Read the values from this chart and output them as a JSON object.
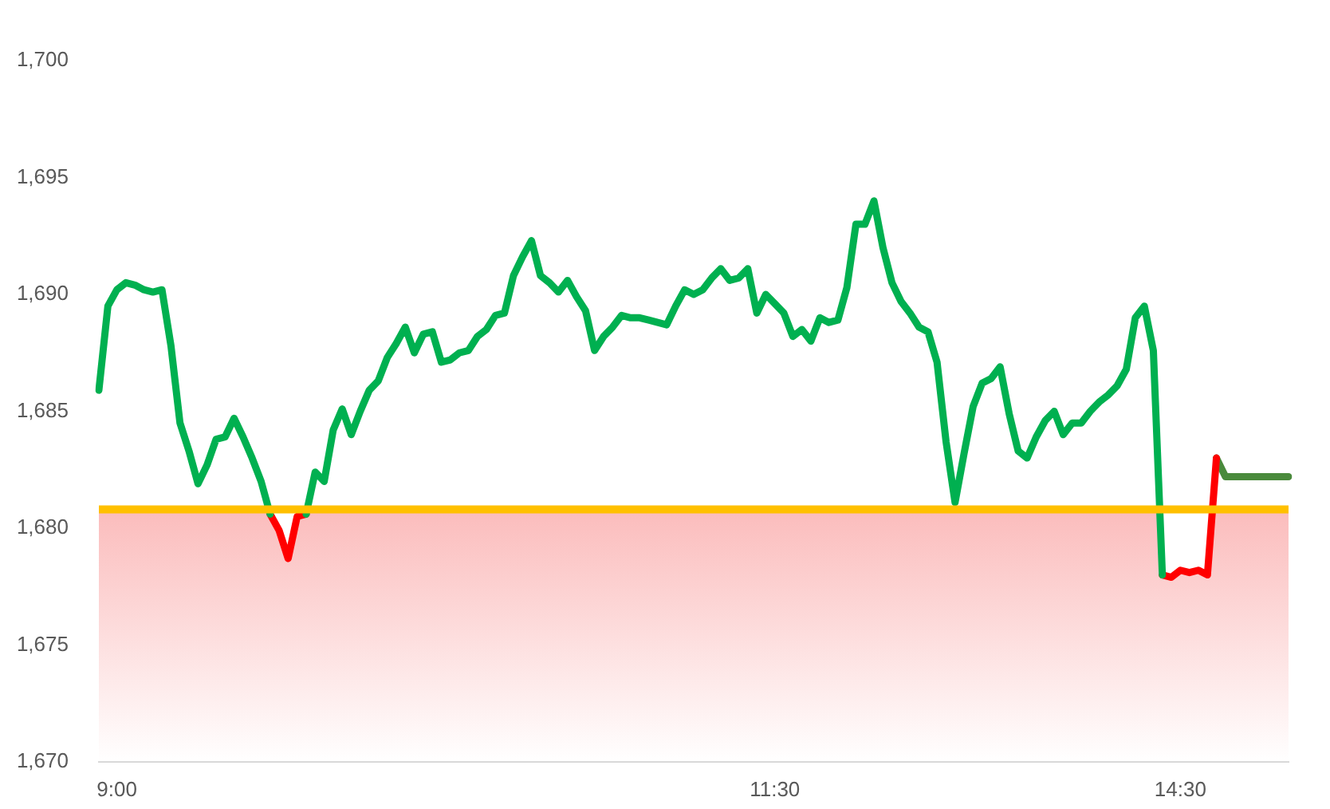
{
  "chart_data": {
    "type": "line",
    "categories": [
      null,
      null,
      "9:00",
      null,
      null,
      null,
      null,
      null,
      null,
      null,
      null,
      null,
      null,
      null,
      null,
      null,
      null,
      null,
      null,
      null,
      null,
      null,
      null,
      null,
      null,
      null,
      null,
      null,
      null,
      null,
      null,
      null,
      null,
      null,
      null,
      null,
      null,
      null,
      null,
      null,
      null,
      null,
      null,
      null,
      null,
      null,
      null,
      null,
      null,
      null,
      null,
      null,
      null,
      null,
      null,
      null,
      null,
      null,
      null,
      null,
      null,
      null,
      null,
      null,
      null,
      null,
      null,
      null,
      null,
      null,
      null,
      null,
      null,
      null,
      null,
      "11:30",
      null,
      null,
      null,
      null,
      null,
      null,
      null,
      null,
      null,
      null,
      null,
      null,
      null,
      null,
      null,
      null,
      null,
      null,
      null,
      null,
      null,
      null,
      null,
      null,
      null,
      null,
      null,
      null,
      null,
      null,
      null,
      null,
      null,
      null,
      null,
      null,
      null,
      null,
      null,
      null,
      null,
      null,
      null,
      null,
      "14:30",
      null,
      null,
      null,
      null,
      null,
      null,
      null,
      null,
      null,
      null,
      null,
      null
    ],
    "series": [
      {
        "color": "#00b050",
        "values": [
          1685.9,
          1689.5,
          1690.2,
          1690.5,
          1690.4,
          1690.2,
          1690.1,
          1690.2,
          1687.8,
          1684.5,
          1683.3,
          1681.9,
          1682.7,
          1683.8,
          1683.9,
          1684.7,
          1683.9,
          1683.0,
          1682.0,
          1680.6,
          null,
          null,
          null,
          1680.6,
          1682.4,
          1682.0,
          1684.2,
          1685.1,
          1684.0,
          1685.0,
          1685.9,
          1686.3,
          1687.3,
          1687.9,
          1688.6,
          1687.5,
          1688.3,
          1688.4,
          1687.1,
          1687.2,
          1687.5,
          1687.6,
          1688.2,
          1688.5,
          1689.1,
          1689.2,
          1690.8,
          1691.6,
          1692.3,
          1690.8,
          1690.5,
          1690.1,
          1690.6,
          1689.9,
          1689.3,
          1687.6,
          1688.2,
          1688.6,
          1689.1,
          1689.0,
          1689.0,
          1688.9,
          1688.8,
          1688.7,
          1689.5,
          1690.2,
          1690.0,
          1690.2,
          1690.7,
          1691.1,
          1690.6,
          1690.7,
          1691.1,
          1689.2,
          1690.0,
          1689.6,
          1689.2,
          1688.2,
          1688.5,
          1688.0,
          1689.0,
          1688.8,
          1688.9,
          1690.3,
          1693.0,
          1693.0,
          1694.0,
          1692.0,
          1690.5,
          1689.7,
          1689.2,
          1688.6,
          1688.4,
          1687.1,
          1683.7,
          1681.1,
          1683.2,
          1685.2,
          1686.2,
          1686.4,
          1686.9,
          1684.9,
          1683.3,
          1683.0,
          1683.9,
          1684.6,
          1685.0,
          1684.0,
          1684.5,
          1684.5,
          1685.0,
          1685.4,
          1685.7,
          1686.1,
          1686.8,
          1689.0,
          1689.5,
          1687.6,
          1678.0,
          null,
          null,
          null,
          null,
          null,
          null,
          null,
          null,
          null,
          null,
          null,
          null,
          null,
          null
        ]
      },
      {
        "color": "#ff0000",
        "values": [
          null,
          null,
          null,
          null,
          null,
          null,
          null,
          null,
          null,
          null,
          null,
          null,
          null,
          null,
          null,
          null,
          null,
          null,
          null,
          1680.6,
          1679.9,
          1678.7,
          1680.5,
          1680.6,
          null,
          null,
          null,
          null,
          null,
          null,
          null,
          null,
          null,
          null,
          null,
          null,
          null,
          null,
          null,
          null,
          null,
          null,
          null,
          null,
          null,
          null,
          null,
          null,
          null,
          null,
          null,
          null,
          null,
          null,
          null,
          null,
          null,
          null,
          null,
          null,
          null,
          null,
          null,
          null,
          null,
          null,
          null,
          null,
          null,
          null,
          null,
          null,
          null,
          null,
          null,
          null,
          null,
          null,
          null,
          null,
          null,
          null,
          null,
          null,
          null,
          null,
          null,
          null,
          null,
          null,
          null,
          null,
          null,
          null,
          null,
          null,
          null,
          null,
          null,
          null,
          null,
          null,
          null,
          null,
          null,
          null,
          null,
          null,
          null,
          null,
          null,
          null,
          null,
          null,
          null,
          null,
          null,
          null,
          1678.0,
          1677.9,
          1678.2,
          1678.1,
          1678.2,
          1678.0,
          1683.0,
          null,
          null,
          null,
          null,
          null,
          null,
          null,
          null
        ]
      },
      {
        "color": "#4a8a3c",
        "values": [
          null,
          null,
          null,
          null,
          null,
          null,
          null,
          null,
          null,
          null,
          null,
          null,
          null,
          null,
          null,
          null,
          null,
          null,
          null,
          null,
          null,
          null,
          null,
          null,
          null,
          null,
          null,
          null,
          null,
          null,
          null,
          null,
          null,
          null,
          null,
          null,
          null,
          null,
          null,
          null,
          null,
          null,
          null,
          null,
          null,
          null,
          null,
          null,
          null,
          null,
          null,
          null,
          null,
          null,
          null,
          null,
          null,
          null,
          null,
          null,
          null,
          null,
          null,
          null,
          null,
          null,
          null,
          null,
          null,
          null,
          null,
          null,
          null,
          null,
          null,
          null,
          null,
          null,
          null,
          null,
          null,
          null,
          null,
          null,
          null,
          null,
          null,
          null,
          null,
          null,
          null,
          null,
          null,
          null,
          null,
          null,
          null,
          null,
          null,
          null,
          null,
          null,
          null,
          null,
          null,
          null,
          null,
          null,
          null,
          null,
          null,
          null,
          null,
          null,
          null,
          null,
          null,
          null,
          null,
          null,
          null,
          null,
          null,
          null,
          1683.0,
          1682.2,
          1682.2,
          1682.2,
          1682.2,
          1682.2,
          1682.2,
          1682.2,
          1682.2
        ]
      }
    ],
    "ylim": [
      1670,
      1700
    ],
    "yticks": [
      {
        "value": 1670,
        "label": "1,670"
      },
      {
        "value": 1675,
        "label": "1,675"
      },
      {
        "value": 1680,
        "label": "1,680"
      },
      {
        "value": 1685,
        "label": "1,685"
      },
      {
        "value": 1690,
        "label": "1,690"
      },
      {
        "value": 1695,
        "label": "1,695"
      },
      {
        "value": 1700,
        "label": "1,700"
      }
    ],
    "ref_lines": [
      {
        "axis": "y",
        "value": 1680.8,
        "color": "#ffc000"
      }
    ],
    "bands": [
      {
        "axis": "y",
        "from": 1670,
        "to": 1680.8,
        "color": "#fbbcbc"
      }
    ],
    "marker": "none",
    "line_style": "solid"
  }
}
